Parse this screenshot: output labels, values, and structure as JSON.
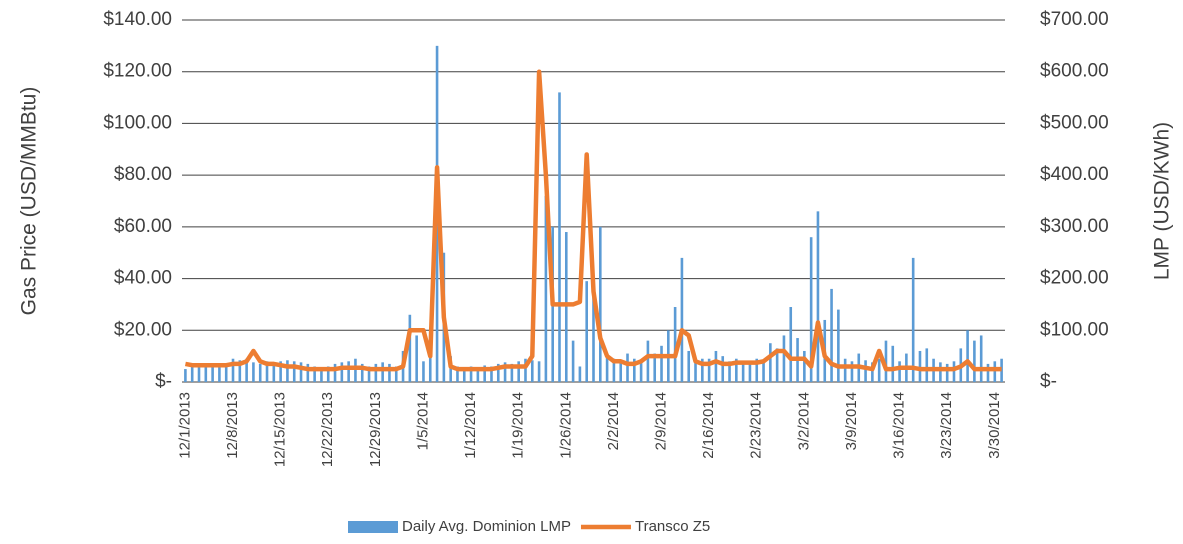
{
  "chart_data": {
    "type": "bar_line",
    "y_label": "Gas Price (USD/MMBtu)",
    "y2_label": "LMP (USD/KWh)",
    "categories": [
      "12/1/2013",
      null,
      null,
      null,
      null,
      null,
      null,
      "12/8/2013",
      null,
      null,
      null,
      null,
      null,
      null,
      "12/15/2013",
      null,
      null,
      null,
      null,
      null,
      null,
      "12/22/2013",
      null,
      null,
      null,
      null,
      null,
      null,
      "12/29/2013",
      null,
      null,
      null,
      null,
      null,
      null,
      "1/5/2014",
      null,
      null,
      null,
      null,
      null,
      null,
      "1/12/2014",
      null,
      null,
      null,
      null,
      null,
      null,
      "1/19/2014",
      null,
      null,
      null,
      null,
      null,
      null,
      "1/26/2014",
      null,
      null,
      null,
      null,
      null,
      null,
      "2/2/2014",
      null,
      null,
      null,
      null,
      null,
      null,
      "2/9/2014",
      null,
      null,
      null,
      null,
      null,
      null,
      "2/16/2014",
      null,
      null,
      null,
      null,
      null,
      null,
      "2/23/2014",
      null,
      null,
      null,
      null,
      null,
      null,
      "3/2/2014",
      null,
      null,
      null,
      null,
      null,
      null,
      "3/9/2014",
      null,
      null,
      null,
      null,
      null,
      null,
      "3/16/2014",
      null,
      null,
      null,
      null,
      null,
      null,
      "3/23/2014",
      null,
      null,
      null,
      null,
      null,
      null,
      "3/30/2014",
      null
    ],
    "series": [
      {
        "name": "Daily Avg. Dominion LMP",
        "kind": "bar",
        "axis": "y2",
        "color": "#5b9bd5",
        "values": [
          25,
          30,
          28,
          32,
          30,
          28,
          30,
          45,
          42,
          45,
          38,
          35,
          40,
          38,
          40,
          42,
          40,
          38,
          35,
          30,
          28,
          30,
          35,
          38,
          40,
          45,
          35,
          30,
          35,
          38,
          35,
          30,
          60,
          130,
          90,
          40,
          100,
          650,
          250,
          50,
          30,
          25,
          30,
          28,
          32,
          30,
          35,
          38,
          35,
          40,
          45,
          42,
          40,
          360,
          300,
          560,
          290,
          80,
          30,
          195,
          200,
          300,
          50,
          45,
          40,
          55,
          45,
          40,
          80,
          55,
          70,
          100,
          145,
          240,
          60,
          40,
          45,
          45,
          60,
          50,
          40,
          45,
          40,
          38,
          45,
          40,
          75,
          65,
          90,
          145,
          85,
          60,
          280,
          330,
          120,
          180,
          140,
          45,
          40,
          55,
          42,
          38,
          45,
          80,
          70,
          40,
          55,
          240,
          60,
          65,
          45,
          38,
          35,
          40,
          65,
          100,
          80,
          90,
          35,
          40,
          45
        ]
      },
      {
        "name": "Transco Z5",
        "kind": "line",
        "axis": "y",
        "color": "#ed7d31",
        "values": [
          7,
          6.5,
          6.5,
          6.5,
          6.5,
          6.5,
          6.5,
          7,
          7,
          8,
          12,
          8,
          7,
          7,
          6.5,
          6,
          6,
          5.5,
          5,
          5,
          5,
          5,
          5,
          5.5,
          5.5,
          5.5,
          5.5,
          5,
          5,
          5,
          5,
          5,
          6,
          20,
          20,
          20,
          10,
          83,
          25,
          6,
          5,
          5,
          5,
          5,
          5,
          5,
          5.5,
          6,
          6,
          6,
          6,
          10,
          120,
          80,
          30,
          30,
          30,
          30,
          31,
          88,
          35,
          17,
          10,
          8,
          8,
          7,
          7,
          8,
          10,
          10,
          10,
          10,
          10,
          20,
          18,
          8,
          7,
          7,
          8,
          7,
          7,
          7.5,
          7.5,
          7.5,
          7.5,
          8,
          10,
          12,
          12,
          9,
          9,
          9,
          6,
          23,
          10,
          7,
          6,
          6,
          6,
          6,
          5.5,
          5,
          12,
          5,
          5,
          5.5,
          5.5,
          5.5,
          5,
          5,
          5,
          5,
          5,
          5,
          6,
          8,
          5,
          5,
          5,
          5,
          5
        ]
      }
    ],
    "ylim": [
      0,
      140
    ],
    "yticks": [
      {
        "value": 0,
        "label": "$-"
      },
      {
        "value": 20,
        "label": "$20.00"
      },
      {
        "value": 40,
        "label": "$40.00"
      },
      {
        "value": 60,
        "label": "$60.00"
      },
      {
        "value": 80,
        "label": "$80.00"
      },
      {
        "value": 100,
        "label": "$100.00"
      },
      {
        "value": 120,
        "label": "$120.00"
      },
      {
        "value": 140,
        "label": "$140.00"
      }
    ],
    "y2lim": [
      0,
      700
    ],
    "y2ticks": [
      {
        "value": 0,
        "label": "$-"
      },
      {
        "value": 100,
        "label": "$100.00"
      },
      {
        "value": 200,
        "label": "$200.00"
      },
      {
        "value": 300,
        "label": "$300.00"
      },
      {
        "value": 400,
        "label": "$400.00"
      },
      {
        "value": 500,
        "label": "$500.00"
      },
      {
        "value": 600,
        "label": "$600.00"
      },
      {
        "value": 700,
        "label": "$700.00"
      }
    ],
    "grid": true,
    "legend": "bottom"
  }
}
